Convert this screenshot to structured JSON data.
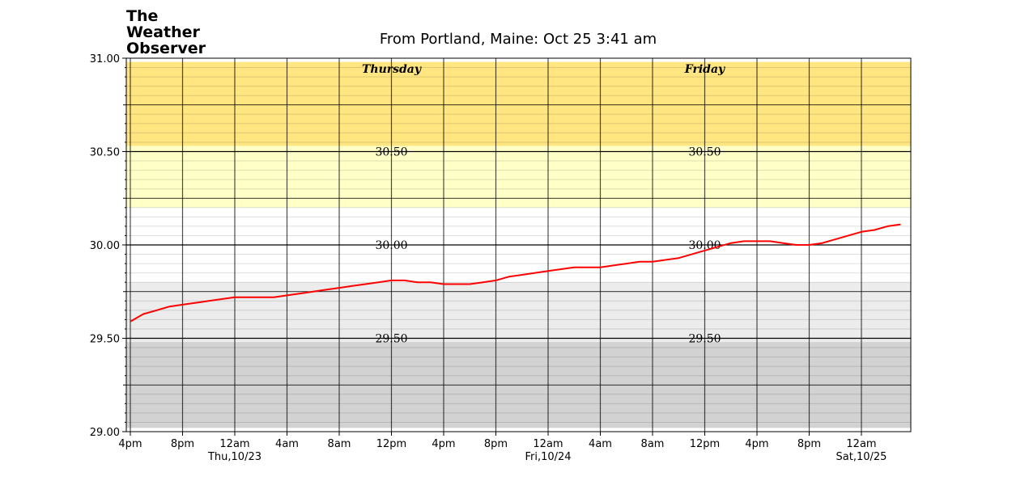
{
  "brand": {
    "line1": "The",
    "line2": "Weather",
    "line3": "Observer"
  },
  "chart_data": {
    "type": "line",
    "title": "From Portland, Maine: Oct 25  3:41 am",
    "xlabel": "",
    "ylabel": "",
    "ylim": [
      29.0,
      31.0
    ],
    "x_tick_labels": [
      "4pm",
      "8pm",
      "12am",
      "4am",
      "8am",
      "12pm",
      "4pm",
      "8pm",
      "12am",
      "4am",
      "8am",
      "12pm",
      "4pm",
      "8pm",
      "12am"
    ],
    "date_labels": [
      {
        "tick": "12am",
        "index": 2,
        "label": "Thu,10/23"
      },
      {
        "tick": "12am",
        "index": 8,
        "label": "Fri,10/24"
      },
      {
        "tick": "12am",
        "index": 14,
        "label": "Sat,10/25"
      }
    ],
    "y_tick_labels": [
      "29.00",
      "29.50",
      "30.00",
      "30.50",
      "31.00"
    ],
    "y_ticks": [
      29.0,
      29.5,
      30.0,
      30.5,
      31.0
    ],
    "day_labels": [
      {
        "label": "Thursday",
        "at": "12pm",
        "index": 5
      },
      {
        "label": "Friday",
        "at": "12pm",
        "index": 11
      }
    ],
    "inline_value_labels": [
      "30.50",
      "30.00",
      "29.50"
    ],
    "bands": [
      {
        "from": 30.53,
        "to": 30.98,
        "color": "#ffe680"
      },
      {
        "from": 30.2,
        "to": 30.53,
        "color": "#ffffc8"
      },
      {
        "from": 29.8,
        "to": 30.2,
        "color": "#ffffff"
      },
      {
        "from": 29.48,
        "to": 29.8,
        "color": "#ececec"
      },
      {
        "from": 29.02,
        "to": 29.48,
        "color": "#d2d2d2"
      }
    ],
    "grid": true,
    "series": [
      {
        "color": "#ff0000",
        "x_hours_since_start": [
          0,
          1,
          2,
          3,
          4,
          5,
          6,
          7,
          8,
          9,
          10,
          11,
          12,
          13,
          14,
          15,
          16,
          17,
          18,
          19,
          20,
          21,
          22,
          23,
          24,
          25,
          26,
          27,
          28,
          29,
          30,
          31,
          32,
          33,
          34,
          35,
          36,
          37,
          38,
          39,
          40,
          41,
          42,
          43,
          44,
          45,
          46,
          47,
          48,
          49,
          50,
          51,
          52,
          53,
          54,
          55,
          56,
          57,
          58,
          59
        ],
        "values": [
          29.59,
          29.63,
          29.65,
          29.67,
          29.68,
          29.69,
          29.7,
          29.71,
          29.72,
          29.72,
          29.72,
          29.72,
          29.73,
          29.74,
          29.75,
          29.76,
          29.77,
          29.78,
          29.79,
          29.8,
          29.81,
          29.81,
          29.8,
          29.8,
          29.79,
          29.79,
          29.79,
          29.8,
          29.81,
          29.83,
          29.84,
          29.85,
          29.86,
          29.87,
          29.88,
          29.88,
          29.88,
          29.89,
          29.9,
          29.91,
          29.91,
          29.92,
          29.93,
          29.95,
          29.97,
          29.99,
          30.01,
          30.02,
          30.02,
          30.02,
          30.01,
          30.0,
          30.0,
          30.01,
          30.03,
          30.05,
          30.07,
          30.08,
          30.1,
          30.11
        ]
      }
    ]
  }
}
